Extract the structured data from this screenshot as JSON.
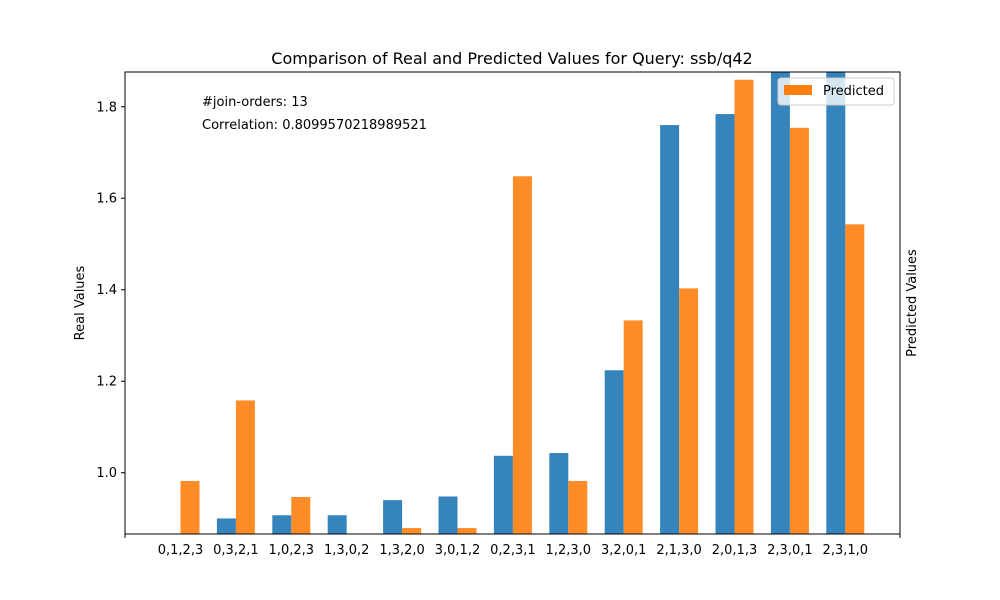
{
  "chart_data": {
    "type": "bar",
    "title": "Comparison of Real and Predicted Values for Query: ssb/q42",
    "xlabel": "",
    "ylabel": "Real Values",
    "ylabel_right": "Predicted Values",
    "categories": [
      "0,1,2,3",
      "0,3,2,1",
      "1,0,2,3",
      "1,3,0,2",
      "1,3,2,0",
      "3,0,1,2",
      "0,2,3,1",
      "1,2,3,0",
      "3,2,0,1",
      "2,1,3,0",
      "2,0,1,3",
      "2,3,0,1",
      "2,3,1,0"
    ],
    "series": [
      {
        "values": [
          0.866,
          0.9,
          0.907,
          0.907,
          0.94,
          0.948,
          1.037,
          1.043,
          1.224,
          1.76,
          1.784,
          1.875,
          1.875
        ],
        "color": "#1f77b4"
      },
      {
        "name": "Predicted",
        "values": [
          0.982,
          1.158,
          0.947,
          0.866,
          0.879,
          0.879,
          1.648,
          0.982,
          1.333,
          1.403,
          1.859,
          1.754,
          1.543
        ],
        "color": "#ff7f0e"
      }
    ],
    "ylim": [
      0.866,
      1.876
    ],
    "yticks": [
      "1.0",
      "1.2",
      "1.4",
      "1.6",
      "1.8"
    ],
    "grid": false,
    "legend_position": "top-right",
    "annotations": {
      "join_orders": "#join-orders: 13",
      "correlation": "Correlation: 0.8099570218989521"
    }
  }
}
